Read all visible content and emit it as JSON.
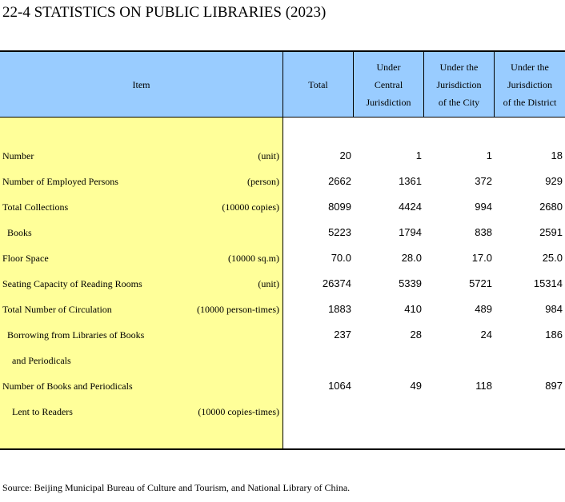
{
  "title": "22-4  STATISTICS ON PUBLIC LIBRARIES (2023)",
  "header": {
    "item": "Item",
    "total": "Total",
    "central": [
      "Under",
      "Central",
      "Jurisdiction"
    ],
    "city": [
      "Under the",
      "Jurisdiction",
      "of the City"
    ],
    "district": [
      "Under the",
      "Jurisdiction",
      "of the District"
    ]
  },
  "rows": [
    {
      "label": "Number",
      "unit": "(unit)",
      "total": "20",
      "central": "1",
      "city": "1",
      "district": "18"
    },
    {
      "label": "Number of Employed Persons",
      "unit": "(person)",
      "total": "2662",
      "central": "1361",
      "city": "372",
      "district": "929"
    },
    {
      "label": "Total Collections",
      "unit": "(10000 copies)",
      "total": "8099",
      "central": "4424",
      "city": "994",
      "district": "2680"
    },
    {
      "label": "Books",
      "unit": "",
      "total": "5223",
      "central": "1794",
      "city": "838",
      "district": "2591"
    },
    {
      "label": "Floor Space",
      "unit": "(10000 sq.m)",
      "total": "70.0",
      "central": "28.0",
      "city": "17.0",
      "district": "25.0"
    },
    {
      "label": "Seating Capacity of Reading Rooms",
      "unit": "(unit)",
      "total": "26374",
      "central": "5339",
      "city": "5721",
      "district": "15314"
    },
    {
      "label": "Total Number of Circulation",
      "unit": "(10000 person-times)",
      "total": "1883",
      "central": "410",
      "city": "489",
      "district": "984"
    },
    {
      "label": "Borrowing from Libraries of Books",
      "unit": "",
      "total": "237",
      "central": "28",
      "city": "24",
      "district": "186"
    },
    {
      "label": "and Periodicals",
      "unit": "",
      "total": "",
      "central": "",
      "city": "",
      "district": ""
    },
    {
      "label": "Number of Books and Periodicals",
      "unit": "",
      "total": "1064",
      "central": "49",
      "city": "118",
      "district": "897"
    },
    {
      "label": "Lent to Readers",
      "unit": "(10000 copies-times)",
      "total": "",
      "central": "",
      "city": "",
      "district": ""
    }
  ],
  "source": "Source: Beijing Municipal Bureau of Culture and Tourism, and National Library of China."
}
